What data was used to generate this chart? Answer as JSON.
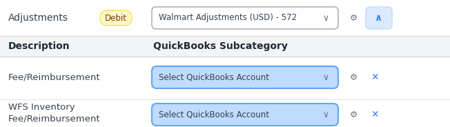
{
  "bg_color": "#f8f9fb",
  "row1_bg": "#ffffff",
  "header_bg": "#f0f2f5",
  "divider_color": "#d1d5db",
  "row1": {
    "label": "Adjustments",
    "badge_text": "Debit",
    "badge_bg": "#fef9c3",
    "badge_border": "#fde047",
    "dropdown_text": "Walmart Adjustments (USD) - 572",
    "dropdown_bg": "#ffffff",
    "dropdown_border": "#9ca3af",
    "arrow_up_bg": "#dbeafe",
    "arrow_up_border": "#bfdbfe",
    "arrow_up_color": "#3b82f6"
  },
  "header_row": {
    "col1": "Description",
    "col2": "QuickBooks Subcategory"
  },
  "data_rows": [
    {
      "label": "Fee/Reimbursement",
      "dropdown_text": "Select QuickBooks Account",
      "dropdown_bg": "#bfdbfe",
      "dropdown_border": "#60a5fa"
    },
    {
      "label": "WFS Inventory\nFee/Reimbursement",
      "dropdown_text": "Select QuickBooks Account",
      "dropdown_bg": "#bfdbfe",
      "dropdown_border": "#60a5fa"
    }
  ],
  "text_color": "#374151",
  "header_color": "#1f2937",
  "x_icon_color": "#3b82f6",
  "figsize": [
    6.52,
    1.84
  ],
  "dpi": 100
}
